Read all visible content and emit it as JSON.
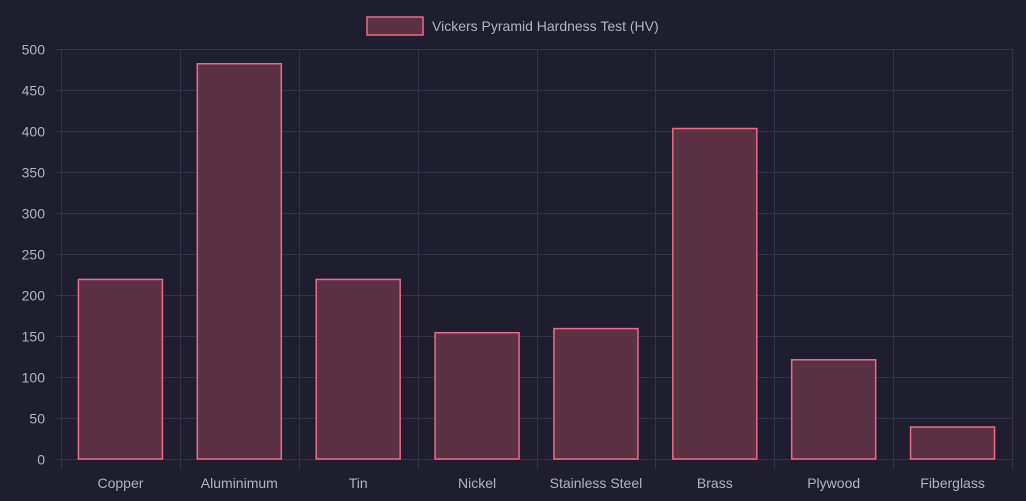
{
  "legend": {
    "label": "Vickers Pyramid Hardness Test (HV)"
  },
  "colors": {
    "background": "#1f1e2e",
    "grid": "#34334a",
    "tick_text": "#b3b2c2",
    "bar_fill": "#5a3244",
    "bar_border": "#f06a8a"
  },
  "chart_data": {
    "type": "bar",
    "categories": [
      "Copper",
      "Aluminimum",
      "Tin",
      "Nickel",
      "Stainless Steel",
      "Brass",
      "Plywood",
      "Fiberglass"
    ],
    "series": [
      {
        "name": "Vickers Pyramid Hardness Test (HV)",
        "values": [
          219,
          482,
          219,
          154,
          159,
          403,
          121,
          39
        ]
      }
    ],
    "ylim": [
      0,
      500
    ],
    "yticks": [
      0,
      50,
      100,
      150,
      200,
      250,
      300,
      350,
      400,
      450,
      500
    ],
    "legend_position": "top",
    "grid": true
  }
}
